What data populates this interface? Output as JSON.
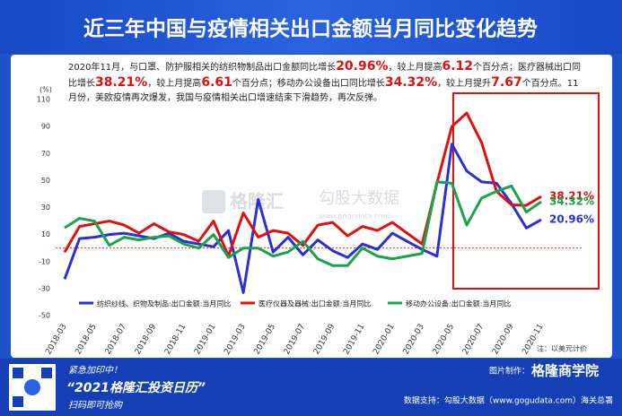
{
  "chart_data": {
    "type": "line",
    "title": "近三年中国与疫情相关出口金额当月同比变化趋势",
    "y_label": "(%)",
    "categories": [
      "2018-03",
      null,
      "2018-05",
      null,
      "2018-07",
      null,
      "2018-09",
      null,
      "2018-11",
      null,
      "2019-01",
      null,
      "2019-03",
      null,
      "2019-05",
      null,
      "2019-07",
      null,
      "2019-09",
      null,
      "2019-11",
      null,
      "2020-01",
      null,
      "2020-03",
      null,
      "2020-05",
      null,
      "2020-07",
      null,
      "2020-09",
      null,
      "2020-11"
    ],
    "ylim": [
      -50,
      110
    ],
    "yticks": [
      -50,
      -30,
      -10,
      10,
      30,
      50,
      70,
      90,
      110
    ],
    "grid": false,
    "legend": "bottom",
    "series": [
      {
        "name": "纺织纱线、织物及制品:出口金额:当月同比",
        "color": "#2a2fd6",
        "values": [
          -23,
          7,
          8,
          10,
          11,
          9,
          7,
          11,
          5,
          3,
          1,
          13,
          -33,
          36,
          -3,
          8,
          -5,
          6,
          -2,
          -7,
          3,
          -1,
          11,
          5,
          -1,
          -6,
          77,
          57,
          49,
          48,
          33,
          14.84,
          20.96
        ],
        "value_labels": [
          null,
          null,
          null,
          null,
          null,
          null,
          null,
          null,
          null,
          null,
          null,
          null,
          null,
          null,
          null,
          null,
          null,
          null,
          null,
          null,
          null,
          null,
          null,
          null,
          null,
          null,
          null,
          null,
          null,
          null,
          null,
          null,
          "20.96%"
        ]
      },
      {
        "name": "医疗仪器及器械:出口金额:当月同比",
        "color": "#e01010",
        "values": [
          -3,
          16,
          18,
          20,
          17,
          11,
          18,
          12,
          10,
          5,
          20,
          -6,
          26,
          8,
          13,
          11,
          2,
          17,
          19,
          9,
          16,
          13,
          19,
          11,
          3,
          48,
          90,
          100,
          78,
          42,
          32,
          31.6,
          38.21
        ],
        "value_labels": [
          null,
          null,
          null,
          null,
          null,
          null,
          null,
          null,
          null,
          null,
          null,
          null,
          null,
          null,
          null,
          null,
          null,
          null,
          null,
          null,
          null,
          null,
          null,
          null,
          null,
          null,
          null,
          null,
          null,
          null,
          null,
          null,
          "38.21%"
        ]
      },
      {
        "name": "移动办公设备:出口金额:当月同比",
        "color": "#1aa34a",
        "values": [
          15,
          22,
          20,
          2,
          8,
          6,
          8,
          9,
          3,
          0,
          10,
          -7,
          0,
          0,
          -6,
          -3,
          5,
          -8,
          -13,
          -13,
          0,
          -6,
          -8,
          -6,
          -4,
          49,
          48,
          17,
          37,
          42,
          46,
          26.65,
          34.32
        ],
        "value_labels": [
          null,
          null,
          null,
          null,
          null,
          null,
          null,
          null,
          null,
          null,
          null,
          null,
          null,
          null,
          null,
          null,
          null,
          null,
          null,
          null,
          null,
          null,
          null,
          null,
          null,
          null,
          null,
          null,
          null,
          null,
          null,
          null,
          "34.32%"
        ]
      }
    ]
  },
  "paragraph": [
    {
      "text": "2020年11月，与口罩、防护服相关的纺织物制品出口金额同比增长",
      "highlight": false
    },
    {
      "text": "20.96%",
      "highlight": true
    },
    {
      "text": "，较上月提高",
      "highlight": false
    },
    {
      "text": "6.12",
      "highlight": true
    },
    {
      "text": "个百分点；医疗器械出口同比增长",
      "highlight": false
    },
    {
      "text": "38.21%",
      "highlight": true
    },
    {
      "text": "，较上月提高",
      "highlight": false
    },
    {
      "text": "6.61",
      "highlight": true
    },
    {
      "text": "个百分点；移动办公设备出口同比增长",
      "highlight": false
    },
    {
      "text": "34.32%",
      "highlight": true
    },
    {
      "text": "，较上月提升",
      "highlight": false
    },
    {
      "text": "7.67",
      "highlight": true
    },
    {
      "text": "个百分点。11月份，美欧疫情再次爆发，我国与疫情相关出口增速结束下滑趋势，再次反弹。",
      "highlight": false
    }
  ],
  "watermark": {
    "left": "格隆汇",
    "right": "勾股大数据",
    "url": "www.gogudata.com"
  },
  "footnote": "注：以美元计价",
  "footer": {
    "promo_1": "紧急加印中！",
    "promo_2": "“2021格隆汇投资日历”",
    "promo_3": "扫码即可抢购",
    "credit_label": "图片制作：",
    "credit_name": "格隆商学院",
    "source": "数据支持：勾股大数据（www.gogudata.com）海关总署"
  }
}
